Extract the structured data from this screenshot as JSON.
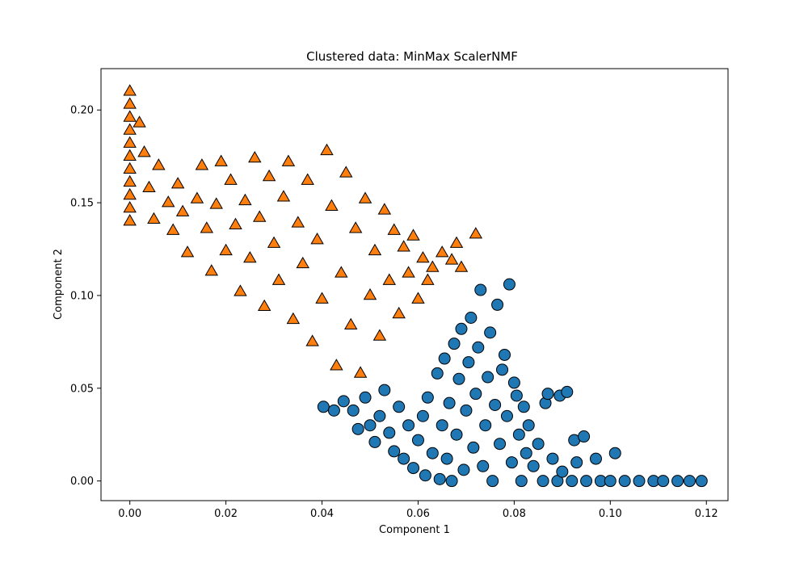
{
  "chart_data": {
    "type": "scatter",
    "title": "Clustered data: MinMax ScalerNMF",
    "xlabel": "Component 1",
    "ylabel": "Component 2",
    "xlim": [
      -0.006,
      0.1245
    ],
    "ylim": [
      -0.0106,
      0.2223
    ],
    "grid": false,
    "xticks": [
      0.0,
      0.02,
      0.04,
      0.06,
      0.08,
      0.1,
      0.12
    ],
    "xtick_labels": [
      "0.00",
      "0.02",
      "0.04",
      "0.06",
      "0.08",
      "0.10",
      "0.12"
    ],
    "yticks": [
      0.0,
      0.05,
      0.1,
      0.15,
      0.2
    ],
    "ytick_labels": [
      "0.00",
      "0.05",
      "0.10",
      "0.15",
      "0.20"
    ],
    "series": [
      {
        "marker": "circle",
        "color": "#1f77b4",
        "edgecolor": "#000000",
        "points": [
          [
            0.0403,
            0.04
          ],
          [
            0.0425,
            0.038
          ],
          [
            0.0445,
            0.043
          ],
          [
            0.0465,
            0.038
          ],
          [
            0.0475,
            0.028
          ],
          [
            0.049,
            0.045
          ],
          [
            0.05,
            0.03
          ],
          [
            0.051,
            0.021
          ],
          [
            0.052,
            0.035
          ],
          [
            0.053,
            0.049
          ],
          [
            0.054,
            0.026
          ],
          [
            0.055,
            0.016
          ],
          [
            0.056,
            0.04
          ],
          [
            0.057,
            0.012
          ],
          [
            0.058,
            0.03
          ],
          [
            0.059,
            0.007
          ],
          [
            0.06,
            0.022
          ],
          [
            0.061,
            0.035
          ],
          [
            0.0615,
            0.003
          ],
          [
            0.062,
            0.045
          ],
          [
            0.063,
            0.015
          ],
          [
            0.064,
            0.058
          ],
          [
            0.0645,
            0.001
          ],
          [
            0.065,
            0.03
          ],
          [
            0.0655,
            0.066
          ],
          [
            0.066,
            0.012
          ],
          [
            0.0665,
            0.042
          ],
          [
            0.067,
            0.0
          ],
          [
            0.0675,
            0.074
          ],
          [
            0.068,
            0.025
          ],
          [
            0.0685,
            0.055
          ],
          [
            0.069,
            0.082
          ],
          [
            0.0695,
            0.006
          ],
          [
            0.07,
            0.038
          ],
          [
            0.0705,
            0.064
          ],
          [
            0.071,
            0.088
          ],
          [
            0.0715,
            0.018
          ],
          [
            0.072,
            0.047
          ],
          [
            0.0725,
            0.072
          ],
          [
            0.073,
            0.103
          ],
          [
            0.0735,
            0.008
          ],
          [
            0.074,
            0.03
          ],
          [
            0.0745,
            0.056
          ],
          [
            0.075,
            0.08
          ],
          [
            0.0755,
            0.0
          ],
          [
            0.076,
            0.041
          ],
          [
            0.0765,
            0.095
          ],
          [
            0.077,
            0.02
          ],
          [
            0.0775,
            0.06
          ],
          [
            0.078,
            0.068
          ],
          [
            0.0785,
            0.035
          ],
          [
            0.079,
            0.106
          ],
          [
            0.0795,
            0.01
          ],
          [
            0.08,
            0.053
          ],
          [
            0.0805,
            0.046
          ],
          [
            0.081,
            0.025
          ],
          [
            0.0815,
            0.0
          ],
          [
            0.082,
            0.04
          ],
          [
            0.0825,
            0.015
          ],
          [
            0.083,
            0.03
          ],
          [
            0.084,
            0.008
          ],
          [
            0.085,
            0.02
          ],
          [
            0.086,
            0.0
          ],
          [
            0.0865,
            0.042
          ],
          [
            0.087,
            0.047
          ],
          [
            0.088,
            0.012
          ],
          [
            0.089,
            0.0
          ],
          [
            0.0895,
            0.046
          ],
          [
            0.09,
            0.005
          ],
          [
            0.091,
            0.048
          ],
          [
            0.092,
            0.0
          ],
          [
            0.0925,
            0.022
          ],
          [
            0.093,
            0.01
          ],
          [
            0.0945,
            0.024
          ],
          [
            0.095,
            0.0
          ],
          [
            0.097,
            0.012
          ],
          [
            0.098,
            0.0
          ],
          [
            0.1,
            0.0
          ],
          [
            0.101,
            0.015
          ],
          [
            0.103,
            0.0
          ],
          [
            0.106,
            0.0
          ],
          [
            0.109,
            0.0
          ],
          [
            0.111,
            0.0
          ],
          [
            0.114,
            0.0
          ],
          [
            0.1165,
            0.0
          ],
          [
            0.119,
            0.0
          ]
        ]
      },
      {
        "marker": "triangle",
        "color": "#ff7f0e",
        "edgecolor": "#000000",
        "points": [
          [
            0.0,
            0.21
          ],
          [
            0.0,
            0.203
          ],
          [
            0.0,
            0.196
          ],
          [
            0.0,
            0.189
          ],
          [
            0.0,
            0.182
          ],
          [
            0.0,
            0.175
          ],
          [
            0.0,
            0.168
          ],
          [
            0.0,
            0.161
          ],
          [
            0.0,
            0.154
          ],
          [
            0.0,
            0.147
          ],
          [
            0.0,
            0.14
          ],
          [
            0.002,
            0.193
          ],
          [
            0.003,
            0.177
          ],
          [
            0.004,
            0.158
          ],
          [
            0.005,
            0.141
          ],
          [
            0.006,
            0.17
          ],
          [
            0.008,
            0.15
          ],
          [
            0.009,
            0.135
          ],
          [
            0.01,
            0.16
          ],
          [
            0.011,
            0.145
          ],
          [
            0.012,
            0.123
          ],
          [
            0.014,
            0.152
          ],
          [
            0.015,
            0.17
          ],
          [
            0.016,
            0.136
          ],
          [
            0.017,
            0.113
          ],
          [
            0.018,
            0.149
          ],
          [
            0.019,
            0.172
          ],
          [
            0.02,
            0.124
          ],
          [
            0.021,
            0.162
          ],
          [
            0.022,
            0.138
          ],
          [
            0.023,
            0.102
          ],
          [
            0.024,
            0.151
          ],
          [
            0.025,
            0.12
          ],
          [
            0.026,
            0.174
          ],
          [
            0.027,
            0.142
          ],
          [
            0.028,
            0.094
          ],
          [
            0.029,
            0.164
          ],
          [
            0.03,
            0.128
          ],
          [
            0.031,
            0.108
          ],
          [
            0.032,
            0.153
          ],
          [
            0.033,
            0.172
          ],
          [
            0.034,
            0.087
          ],
          [
            0.035,
            0.139
          ],
          [
            0.036,
            0.117
          ],
          [
            0.037,
            0.162
          ],
          [
            0.038,
            0.075
          ],
          [
            0.039,
            0.13
          ],
          [
            0.04,
            0.098
          ],
          [
            0.041,
            0.178
          ],
          [
            0.042,
            0.148
          ],
          [
            0.043,
            0.062
          ],
          [
            0.044,
            0.112
          ],
          [
            0.045,
            0.166
          ],
          [
            0.046,
            0.084
          ],
          [
            0.047,
            0.136
          ],
          [
            0.048,
            0.058
          ],
          [
            0.049,
            0.152
          ],
          [
            0.05,
            0.1
          ],
          [
            0.051,
            0.124
          ],
          [
            0.052,
            0.078
          ],
          [
            0.053,
            0.146
          ],
          [
            0.054,
            0.108
          ],
          [
            0.055,
            0.135
          ],
          [
            0.056,
            0.09
          ],
          [
            0.057,
            0.126
          ],
          [
            0.058,
            0.112
          ],
          [
            0.059,
            0.132
          ],
          [
            0.06,
            0.098
          ],
          [
            0.061,
            0.12
          ],
          [
            0.062,
            0.108
          ],
          [
            0.063,
            0.115
          ],
          [
            0.065,
            0.123
          ],
          [
            0.067,
            0.119
          ],
          [
            0.068,
            0.128
          ],
          [
            0.069,
            0.115
          ],
          [
            0.072,
            0.133
          ]
        ]
      }
    ]
  }
}
